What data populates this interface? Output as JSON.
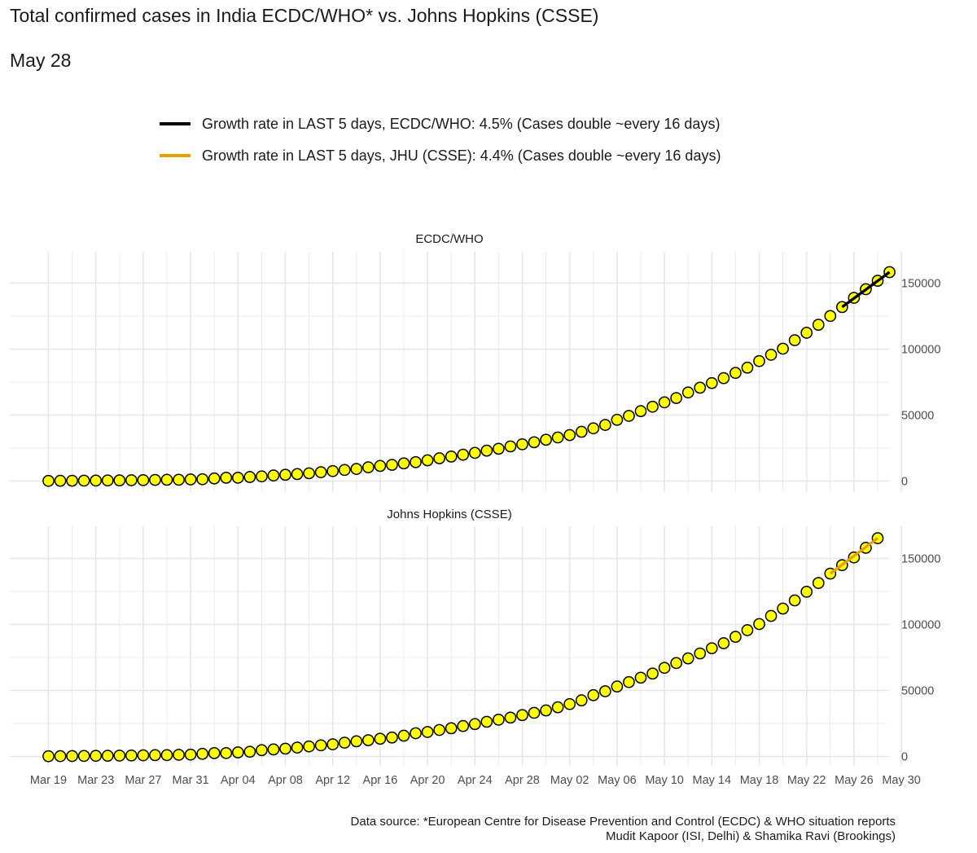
{
  "title": "Total confirmed cases in India ECDC/WHO* vs. Johns Hopkins (CSSE)",
  "subtitle": "May 28",
  "legend": [
    {
      "label": "Growth rate in LAST 5 days, ECDC/WHO: 4.5% (Cases double ~every 16 days)",
      "color": "#000000"
    },
    {
      "label": "Growth rate in LAST 5 days, JHU (CSSE): 4.4% (Cases double ~every 16 days)",
      "color": "#E69F00"
    }
  ],
  "caption": [
    "Data source: *European Centre for Disease Prevention and Control (ECDC) & WHO situation reports",
    "Mudit Kapoor (ISI, Delhi) & Shamika Ravi (Brookings)"
  ],
  "colors": {
    "point_fill": "#FFFF00",
    "point_stroke": "#000000",
    "grid": "#E6E6E6"
  },
  "chart_data": {
    "type": "scatter",
    "x_start_date": "2020-03-19",
    "x_tick_labels": [
      "Mar 19",
      "Mar 23",
      "Mar 27",
      "Mar 31",
      "Apr 04",
      "Apr 08",
      "Apr 12",
      "Apr 16",
      "Apr 20",
      "Apr 24",
      "Apr 28",
      "May 02",
      "May 06",
      "May 10",
      "May 14",
      "May 18",
      "May 22",
      "May 26",
      "May 30"
    ],
    "y_ticks": [
      0,
      50000,
      100000,
      150000
    ],
    "y_tick_labels": [
      "0",
      "50000",
      "100000",
      "150000"
    ],
    "panels": [
      {
        "strip": "ECDC/WHO",
        "ylim": [
          -5000,
          170000
        ],
        "values": [
          173,
          223,
          283,
          332,
          396,
          499,
          536,
          657,
          727,
          887,
          987,
          1024,
          1251,
          1397,
          1998,
          2543,
          2567,
          3082,
          3588,
          4289,
          4778,
          5311,
          5916,
          6725,
          7598,
          8446,
          9205,
          10453,
          11487,
          12322,
          13430,
          14352,
          15722,
          17265,
          18600,
          19984,
          21393,
          23077,
          24506,
          26283,
          27890,
          29451,
          31332,
          33050,
          34863,
          37336,
          39980,
          42533,
          46437,
          49400,
          52987,
          56342,
          59662,
          62939,
          67152,
          70756,
          74281,
          78003,
          81970,
          85940,
          90927,
          95698,
          100328,
          106750,
          112359,
          118447,
          125101,
          131868,
          138845,
          145380,
          151767,
          158333
        ],
        "trend": {
          "from_index": 67,
          "to_index": 71,
          "color": "#000000"
        }
      },
      {
        "strip": "Johns Hopkins (CSSE)",
        "ylim": [
          -5000,
          175000
        ],
        "values": [
          194,
          244,
          330,
          396,
          499,
          536,
          657,
          727,
          887,
          987,
          1024,
          1251,
          1397,
          1998,
          2543,
          2567,
          3082,
          3588,
          4778,
          5311,
          5916,
          6725,
          7598,
          8446,
          9205,
          10453,
          11487,
          12322,
          13430,
          14352,
          15722,
          17615,
          18539,
          20080,
          21370,
          23077,
          24530,
          26283,
          27890,
          29451,
          31324,
          33062,
          34863,
          37257,
          39699,
          42505,
          46437,
          49400,
          52987,
          56351,
          59695,
          62808,
          67161,
          70768,
          74292,
          78055,
          81997,
          85784,
          90648,
          95698,
          100328,
          106475,
          112028,
          118226,
          124794,
          131423,
          138536,
          144950,
          150793,
          158086,
          165386
        ],
        "trend": {
          "from_index": 66,
          "to_index": 70,
          "color": "#E69F00"
        }
      }
    ]
  }
}
